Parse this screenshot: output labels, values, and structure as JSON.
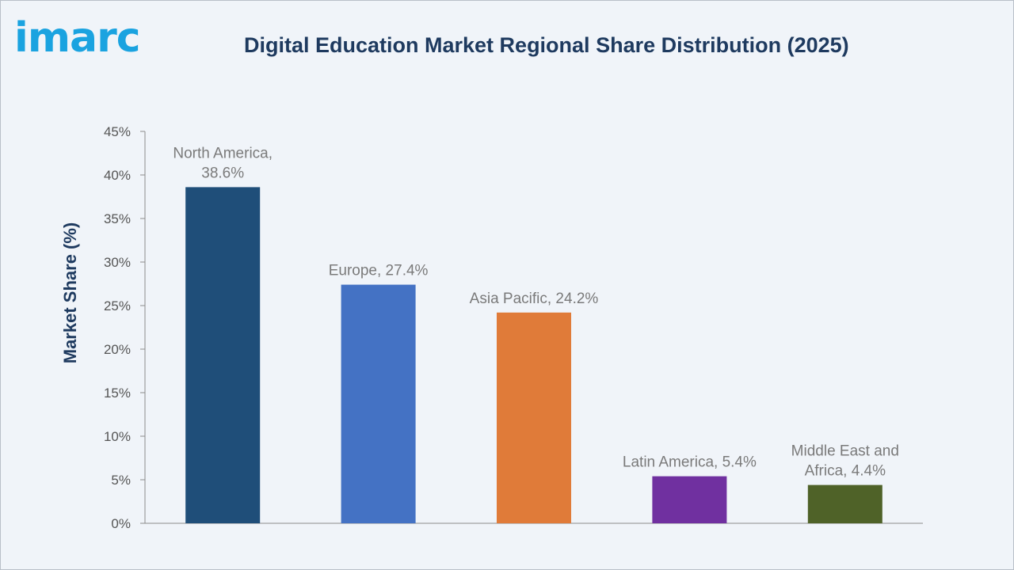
{
  "logo": {
    "text": "imarc"
  },
  "chart_data": {
    "type": "bar",
    "title": "Digital Education Market Regional Share Distribution (2025)",
    "ylabel": "Market Share (%)",
    "xlabel": "",
    "ylim": [
      0,
      45
    ],
    "yticks": [
      "0%",
      "5%",
      "10%",
      "15%",
      "20%",
      "25%",
      "30%",
      "35%",
      "40%",
      "45%"
    ],
    "grid": false,
    "categories": [
      "North America",
      "Europe",
      "Asia Pacific",
      "Latin America",
      "Middle East and Africa"
    ],
    "values": [
      38.6,
      27.4,
      24.2,
      5.4,
      4.4
    ],
    "data_labels": [
      [
        "North America,",
        "38.6%"
      ],
      [
        "Europe, 27.4%"
      ],
      [
        "Asia Pacific, 24.2%"
      ],
      [
        "Latin America, 5.4%"
      ],
      [
        "Middle East and",
        "Africa, 4.4%"
      ]
    ],
    "colors": [
      "#1f4e79",
      "#4472c4",
      "#e07b39",
      "#7030a0",
      "#4f6228"
    ]
  }
}
